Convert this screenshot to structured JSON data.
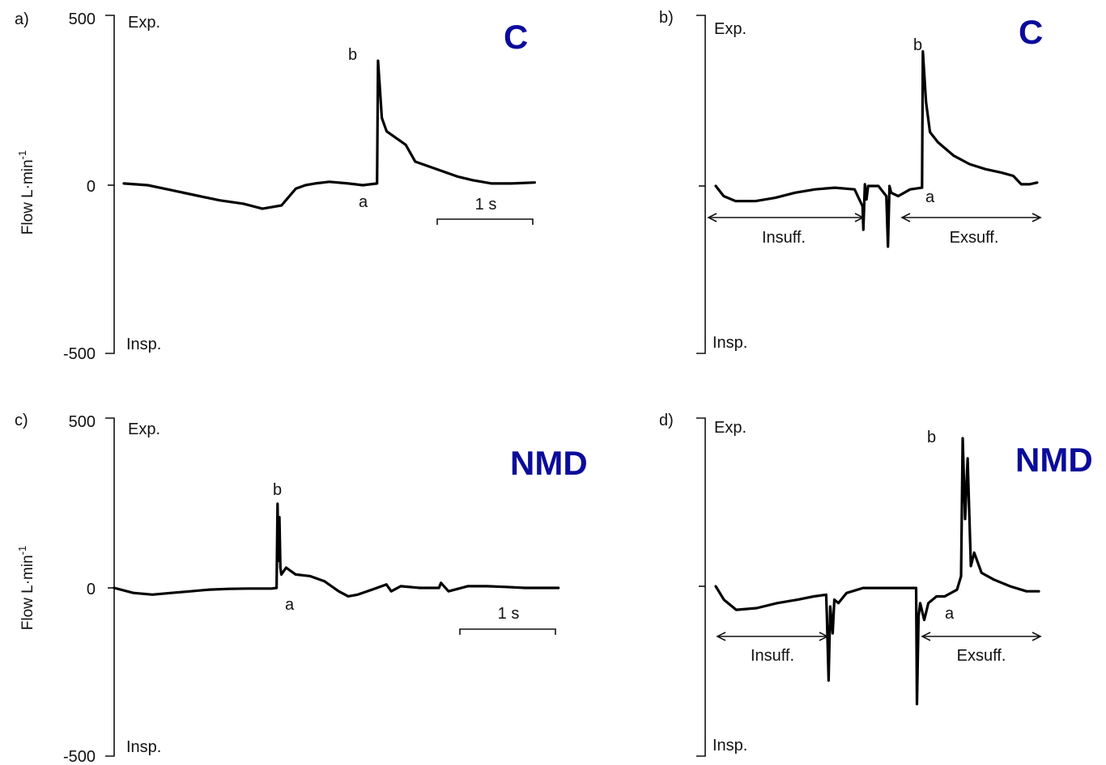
{
  "chart_data": [
    {
      "type": "line",
      "panel_label": "a)",
      "group_label": "C",
      "group_color": "#0b0b9b",
      "ylabel": "Flow L·min",
      "ylabel_sup": "-1",
      "yticks": [
        "500",
        "0",
        "-500"
      ],
      "ylim": [
        -500,
        500
      ],
      "top_label": "Exp.",
      "bottom_label": "Insp.",
      "scale_bar": "1 s",
      "point_a": "a",
      "point_b": "b",
      "series": [
        {
          "x": [
            0,
            0.25,
            0.5,
            0.75,
            1.0,
            1.25,
            1.45,
            1.65,
            1.8,
            1.9,
            2.0,
            2.15,
            2.35,
            2.5,
            2.65,
            2.66,
            2.7,
            2.75,
            2.8,
            2.95,
            3.05,
            3.2,
            3.35,
            3.5,
            3.65,
            3.85,
            4.05,
            4.3
          ],
          "y": [
            5,
            0,
            -15,
            -30,
            -45,
            -55,
            -70,
            -60,
            -10,
            0,
            5,
            10,
            5,
            0,
            5,
            370,
            200,
            160,
            150,
            120,
            70,
            55,
            40,
            25,
            15,
            5,
            5,
            8
          ]
        }
      ]
    },
    {
      "type": "line",
      "panel_label": "b)",
      "group_label": "C",
      "group_color": "#0b0b9b",
      "top_label": "Exp.",
      "bottom_label": "Insp.",
      "ylim": [
        -500,
        500
      ],
      "point_a": "a",
      "point_b": "b",
      "phase_left": "Insuff.",
      "phase_right": "Exsuff.",
      "series": [
        {
          "x": [
            0,
            0.1,
            0.25,
            0.5,
            0.75,
            1.0,
            1.25,
            1.5,
            1.75,
            1.85,
            1.86,
            1.88,
            1.9,
            1.92,
            1.95,
            2.05,
            2.15,
            2.17,
            2.19,
            2.21,
            2.3,
            2.45,
            2.6,
            2.61,
            2.65,
            2.7,
            2.8,
            3.0,
            3.2,
            3.4,
            3.6,
            3.75,
            3.85,
            3.95,
            4.05
          ],
          "y": [
            0,
            -30,
            -45,
            -45,
            -35,
            -20,
            -10,
            -5,
            -10,
            -60,
            -130,
            5,
            -40,
            0,
            0,
            0,
            -30,
            -180,
            0,
            -20,
            -30,
            -10,
            -5,
            400,
            250,
            160,
            130,
            90,
            65,
            50,
            40,
            30,
            5,
            5,
            10
          ]
        }
      ]
    },
    {
      "type": "line",
      "panel_label": "c)",
      "group_label": "NMD",
      "group_color": "#0b0b9b",
      "ylabel": "Flow L·min",
      "ylabel_sup": "-1",
      "yticks": [
        "500",
        "0",
        "-500"
      ],
      "ylim": [
        -500,
        500
      ],
      "top_label": "Exp.",
      "bottom_label": "Insp.",
      "scale_bar": "1 s",
      "point_a": "a",
      "point_b": "b",
      "series": [
        {
          "x": [
            0,
            0.2,
            0.4,
            0.6,
            0.8,
            1.0,
            1.2,
            1.4,
            1.65,
            1.7,
            1.71,
            1.72,
            1.73,
            1.74,
            1.75,
            1.8,
            1.9,
            2.05,
            2.2,
            2.35,
            2.45,
            2.55,
            2.7,
            2.85,
            2.9,
            3.0,
            3.2,
            3.4,
            3.42,
            3.5,
            3.7,
            3.9,
            4.1,
            4.3,
            4.5,
            4.65
          ],
          "y": [
            0,
            -15,
            -20,
            -15,
            -10,
            -5,
            -3,
            -2,
            -2,
            0,
            250,
            80,
            210,
            60,
            40,
            60,
            40,
            35,
            20,
            -10,
            -25,
            -20,
            -5,
            10,
            -10,
            5,
            0,
            0,
            15,
            -10,
            5,
            5,
            3,
            0,
            0,
            0
          ]
        }
      ]
    },
    {
      "type": "line",
      "panel_label": "d)",
      "group_label": "NMD",
      "group_color": "#0b0b9b",
      "top_label": "Exp.",
      "bottom_label": "Insp.",
      "ylim": [
        -500,
        500
      ],
      "point_a": "a",
      "point_b": "b",
      "phase_left": "Insuff.",
      "phase_right": "Exsuff.",
      "series": [
        {
          "x": [
            0,
            0.1,
            0.25,
            0.5,
            0.75,
            1.0,
            1.2,
            1.35,
            1.36,
            1.38,
            1.4,
            1.43,
            1.45,
            1.5,
            1.6,
            1.8,
            2.0,
            2.2,
            2.35,
            2.45,
            2.46,
            2.48,
            2.5,
            2.55,
            2.6,
            2.7,
            2.8,
            2.95,
            3.0,
            3.02,
            3.05,
            3.08,
            3.12,
            3.16,
            3.25,
            3.4,
            3.6,
            3.8,
            3.95
          ],
          "y": [
            0,
            -40,
            -70,
            -65,
            -50,
            -40,
            -30,
            -25,
            -100,
            -280,
            -60,
            -140,
            -40,
            -50,
            -20,
            -5,
            -5,
            -5,
            -5,
            -5,
            -350,
            -90,
            -50,
            -100,
            -50,
            -30,
            -30,
            -10,
            30,
            440,
            200,
            380,
            60,
            100,
            40,
            20,
            0,
            -15,
            -15
          ]
        }
      ]
    }
  ]
}
